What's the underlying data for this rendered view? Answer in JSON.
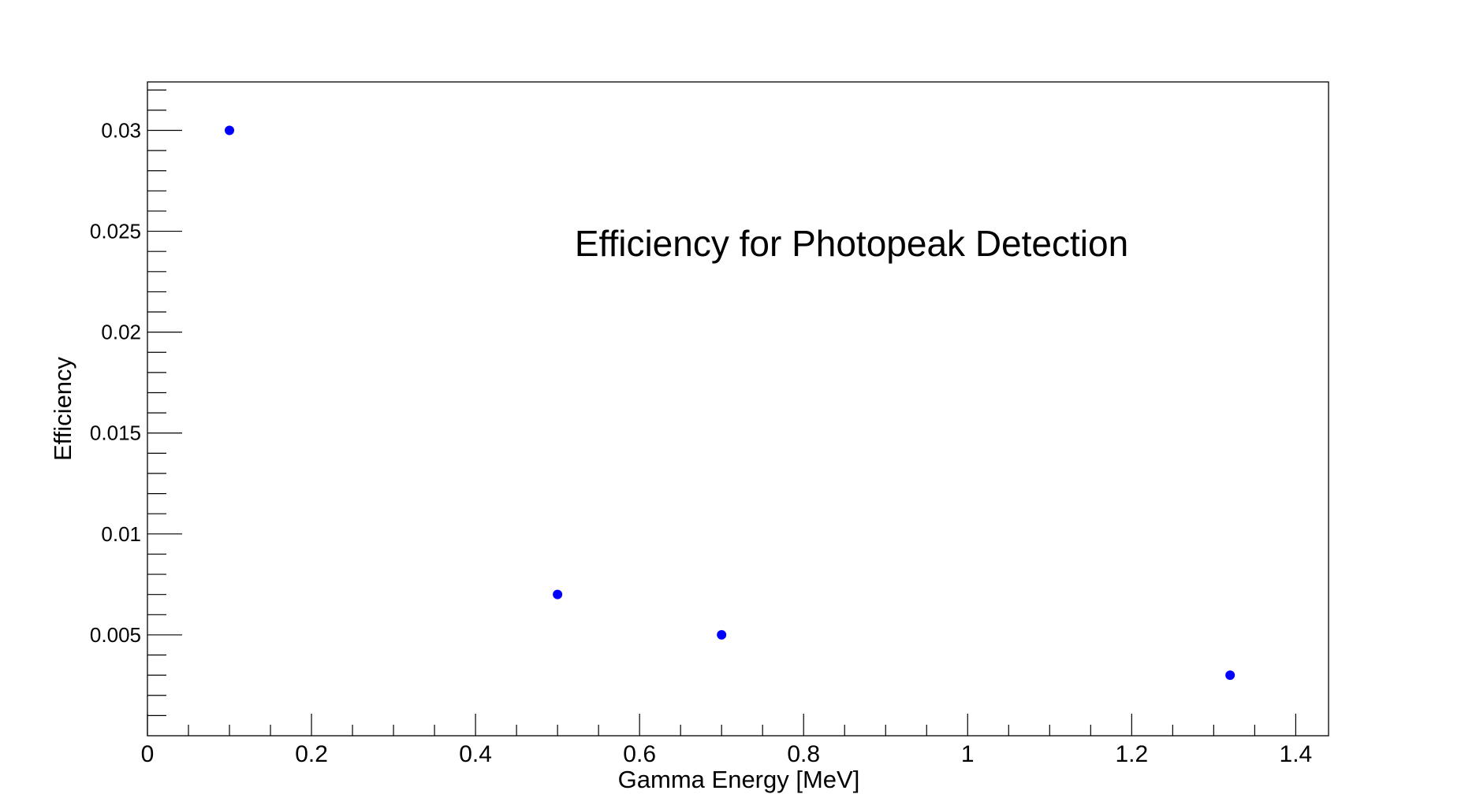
{
  "chart_data": {
    "type": "scatter",
    "title": "Efficiency for Photopeak Detection",
    "xlabel": "Gamma Energy [MeV]",
    "ylabel": "Efficiency",
    "xlim": [
      0,
      1.44
    ],
    "ylim": [
      0.0,
      0.0324
    ],
    "x_ticks": [
      0,
      0.2,
      0.4,
      0.6,
      0.8,
      1,
      1.2,
      1.4
    ],
    "x_tick_labels": [
      "0",
      "0.2",
      "0.4",
      "0.6",
      "0.8",
      "1",
      "1.2",
      "1.4"
    ],
    "y_ticks": [
      0.005,
      0.01,
      0.015,
      0.02,
      0.025,
      0.03
    ],
    "y_tick_labels": [
      "0.005",
      "0.01",
      "0.015",
      "0.02",
      "0.025",
      "0.03"
    ],
    "grid": false,
    "legend": "none",
    "series": [
      {
        "color": "#0000ff",
        "x": [
          0.1,
          0.5,
          0.7,
          1.32
        ],
        "y": [
          0.03,
          0.007,
          0.005,
          0.003
        ]
      }
    ]
  }
}
